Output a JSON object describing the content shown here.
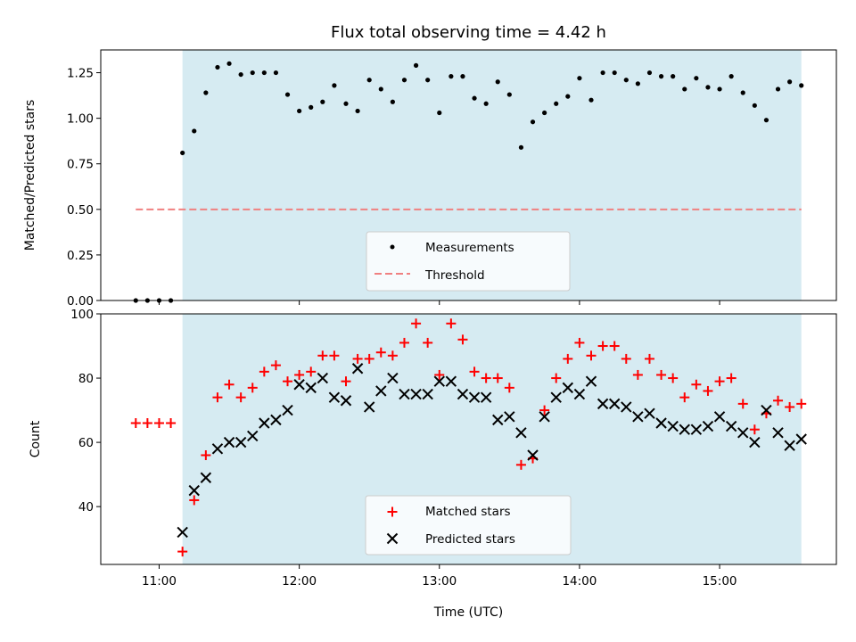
{
  "chart_data": [
    {
      "type": "scatter",
      "title": "Flux total observing time = 4.42 h",
      "ylabel": "Matched/Predicted stars",
      "xlabel": "",
      "ylim": [
        0,
        1.375
      ],
      "yticks": [
        "0.00",
        "0.25",
        "0.50",
        "0.75",
        "1.00",
        "1.25"
      ],
      "observing_window": [
        "11:10",
        "15:35"
      ],
      "window_color": "#add8e6",
      "series": [
        {
          "name": "Measurements",
          "color": "#000000",
          "marker": "dot",
          "points": [
            [
              "10:50",
              0.0
            ],
            [
              "10:55",
              0.0
            ],
            [
              "11:00",
              0.0
            ],
            [
              "11:05",
              0.0
            ],
            [
              "11:10",
              0.81
            ],
            [
              "11:15",
              0.93
            ],
            [
              "11:20",
              1.14
            ],
            [
              "11:25",
              1.28
            ],
            [
              "11:30",
              1.3
            ],
            [
              "11:35",
              1.24
            ],
            [
              "11:40",
              1.25
            ],
            [
              "11:45",
              1.25
            ],
            [
              "11:50",
              1.25
            ],
            [
              "11:55",
              1.13
            ],
            [
              "12:00",
              1.04
            ],
            [
              "12:05",
              1.06
            ],
            [
              "12:10",
              1.09
            ],
            [
              "12:15",
              1.18
            ],
            [
              "12:20",
              1.08
            ],
            [
              "12:25",
              1.04
            ],
            [
              "12:30",
              1.21
            ],
            [
              "12:35",
              1.16
            ],
            [
              "12:40",
              1.09
            ],
            [
              "12:45",
              1.21
            ],
            [
              "12:50",
              1.29
            ],
            [
              "12:55",
              1.21
            ],
            [
              "13:00",
              1.03
            ],
            [
              "13:05",
              1.23
            ],
            [
              "13:10",
              1.23
            ],
            [
              "13:15",
              1.11
            ],
            [
              "13:20",
              1.08
            ],
            [
              "13:25",
              1.2
            ],
            [
              "13:30",
              1.13
            ],
            [
              "13:35",
              0.84
            ],
            [
              "13:40",
              0.98
            ],
            [
              "13:45",
              1.03
            ],
            [
              "13:50",
              1.08
            ],
            [
              "13:55",
              1.12
            ],
            [
              "14:00",
              1.22
            ],
            [
              "14:05",
              1.1
            ],
            [
              "14:10",
              1.25
            ],
            [
              "14:15",
              1.25
            ],
            [
              "14:20",
              1.21
            ],
            [
              "14:25",
              1.19
            ],
            [
              "14:30",
              1.25
            ],
            [
              "14:35",
              1.23
            ],
            [
              "14:40",
              1.23
            ],
            [
              "14:45",
              1.16
            ],
            [
              "14:50",
              1.22
            ],
            [
              "14:55",
              1.17
            ],
            [
              "15:00",
              1.16
            ],
            [
              "15:05",
              1.23
            ],
            [
              "15:10",
              1.14
            ],
            [
              "15:15",
              1.07
            ],
            [
              "15:20",
              0.99
            ],
            [
              "15:25",
              1.16
            ],
            [
              "15:30",
              1.2
            ],
            [
              "15:35",
              1.18
            ]
          ]
        },
        {
          "name": "Threshold",
          "color": "#f08080",
          "marker": "dashed-line",
          "points": [
            [
              "10:50",
              0.5
            ],
            [
              "15:35",
              0.5
            ]
          ]
        }
      ],
      "legend_position": "bottom-center"
    },
    {
      "type": "scatter",
      "title": "",
      "ylabel": "Count",
      "xlabel": "Time (UTC)",
      "ylim": [
        22,
        100
      ],
      "yticks": [
        "40",
        "60",
        "80",
        "100"
      ],
      "xlim": [
        "10:35",
        "15:50"
      ],
      "xticks": [
        "11:00",
        "12:00",
        "13:00",
        "14:00",
        "15:00"
      ],
      "observing_window": [
        "11:10",
        "15:35"
      ],
      "window_color": "#add8e6",
      "series": [
        {
          "name": "Matched stars",
          "color": "#ff0000",
          "marker": "plus",
          "points": [
            [
              "10:50",
              66
            ],
            [
              "10:55",
              66
            ],
            [
              "11:00",
              66
            ],
            [
              "11:05",
              66
            ],
            [
              "11:10",
              26
            ],
            [
              "11:15",
              42
            ],
            [
              "11:20",
              56
            ],
            [
              "11:25",
              74
            ],
            [
              "11:30",
              78
            ],
            [
              "11:35",
              74
            ],
            [
              "11:40",
              77
            ],
            [
              "11:45",
              82
            ],
            [
              "11:50",
              84
            ],
            [
              "11:55",
              79
            ],
            [
              "12:00",
              81
            ],
            [
              "12:05",
              82
            ],
            [
              "12:10",
              87
            ],
            [
              "12:15",
              87
            ],
            [
              "12:20",
              79
            ],
            [
              "12:25",
              86
            ],
            [
              "12:30",
              86
            ],
            [
              "12:35",
              88
            ],
            [
              "12:40",
              87
            ],
            [
              "12:45",
              91
            ],
            [
              "12:50",
              97
            ],
            [
              "12:55",
              91
            ],
            [
              "13:00",
              81
            ],
            [
              "13:05",
              97
            ],
            [
              "13:10",
              92
            ],
            [
              "13:15",
              82
            ],
            [
              "13:20",
              80
            ],
            [
              "13:25",
              80
            ],
            [
              "13:30",
              77
            ],
            [
              "13:35",
              53
            ],
            [
              "13:40",
              55
            ],
            [
              "13:45",
              70
            ],
            [
              "13:50",
              80
            ],
            [
              "13:55",
              86
            ],
            [
              "14:00",
              91
            ],
            [
              "14:05",
              87
            ],
            [
              "14:10",
              90
            ],
            [
              "14:15",
              90
            ],
            [
              "14:20",
              86
            ],
            [
              "14:25",
              81
            ],
            [
              "14:30",
              86
            ],
            [
              "14:35",
              81
            ],
            [
              "14:40",
              80
            ],
            [
              "14:45",
              74
            ],
            [
              "14:50",
              78
            ],
            [
              "14:55",
              76
            ],
            [
              "15:00",
              79
            ],
            [
              "15:05",
              80
            ],
            [
              "15:10",
              72
            ],
            [
              "15:15",
              64
            ],
            [
              "15:20",
              69
            ],
            [
              "15:25",
              73
            ],
            [
              "15:30",
              71
            ],
            [
              "15:35",
              72
            ]
          ]
        },
        {
          "name": "Predicted stars",
          "color": "#000000",
          "marker": "x",
          "points": [
            [
              "11:10",
              32
            ],
            [
              "11:15",
              45
            ],
            [
              "11:20",
              49
            ],
            [
              "11:25",
              58
            ],
            [
              "11:30",
              60
            ],
            [
              "11:35",
              60
            ],
            [
              "11:40",
              62
            ],
            [
              "11:45",
              66
            ],
            [
              "11:50",
              67
            ],
            [
              "11:55",
              70
            ],
            [
              "12:00",
              78
            ],
            [
              "12:05",
              77
            ],
            [
              "12:10",
              80
            ],
            [
              "12:15",
              74
            ],
            [
              "12:20",
              73
            ],
            [
              "12:25",
              83
            ],
            [
              "12:30",
              71
            ],
            [
              "12:35",
              76
            ],
            [
              "12:40",
              80
            ],
            [
              "12:45",
              75
            ],
            [
              "12:50",
              75
            ],
            [
              "12:55",
              75
            ],
            [
              "13:00",
              79
            ],
            [
              "13:05",
              79
            ],
            [
              "13:10",
              75
            ],
            [
              "13:15",
              74
            ],
            [
              "13:20",
              74
            ],
            [
              "13:25",
              67
            ],
            [
              "13:30",
              68
            ],
            [
              "13:35",
              63
            ],
            [
              "13:40",
              56
            ],
            [
              "13:45",
              68
            ],
            [
              "13:50",
              74
            ],
            [
              "13:55",
              77
            ],
            [
              "14:00",
              75
            ],
            [
              "14:05",
              79
            ],
            [
              "14:10",
              72
            ],
            [
              "14:15",
              72
            ],
            [
              "14:20",
              71
            ],
            [
              "14:25",
              68
            ],
            [
              "14:30",
              69
            ],
            [
              "14:35",
              66
            ],
            [
              "14:40",
              65
            ],
            [
              "14:45",
              64
            ],
            [
              "14:50",
              64
            ],
            [
              "14:55",
              65
            ],
            [
              "15:00",
              68
            ],
            [
              "15:05",
              65
            ],
            [
              "15:10",
              63
            ],
            [
              "15:15",
              60
            ],
            [
              "15:20",
              70
            ],
            [
              "15:25",
              63
            ],
            [
              "15:30",
              59
            ],
            [
              "15:35",
              61
            ]
          ]
        }
      ],
      "legend_position": "bottom-center"
    }
  ]
}
